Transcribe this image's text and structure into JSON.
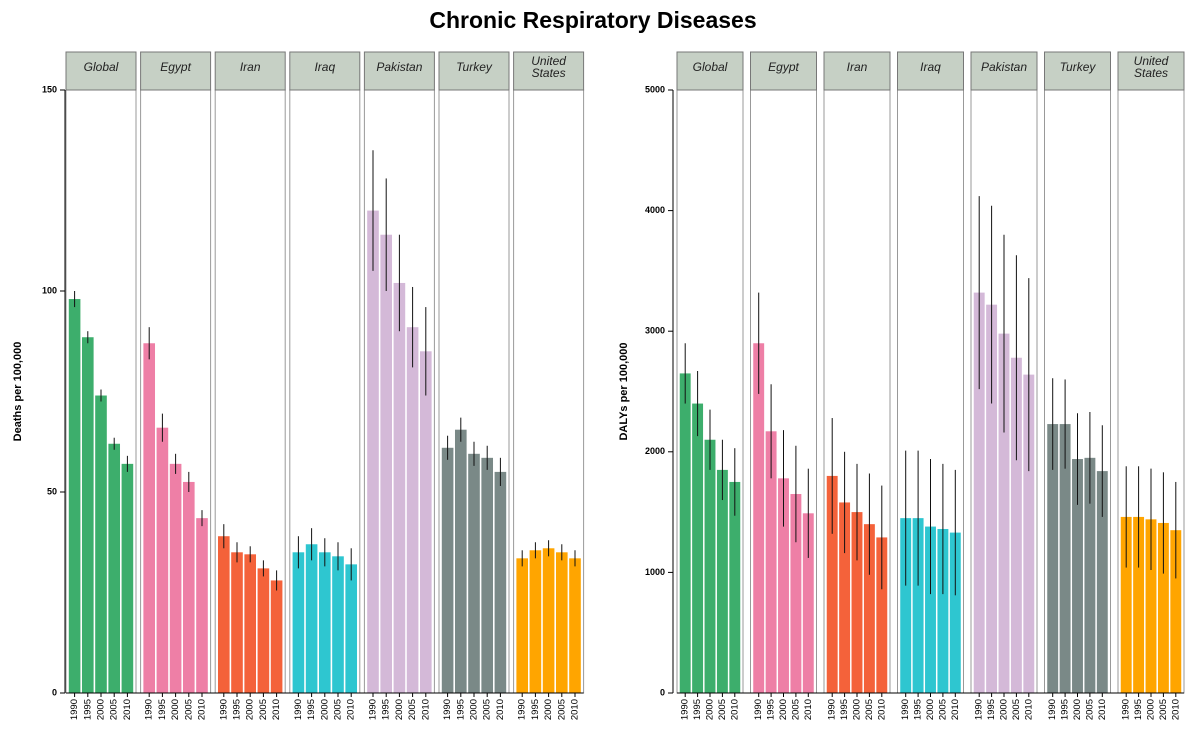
{
  "title": "Chronic Respiratory Diseases",
  "chart_data": [
    {
      "type": "bar",
      "ylabel": "Deaths per 100,000",
      "ylim": [
        0,
        150
      ],
      "yticks": [
        0,
        50,
        100,
        150
      ],
      "categories": [
        "1990",
        "1995",
        "2000",
        "2005",
        "2010"
      ],
      "series": [
        {
          "name": "Global",
          "color": "#3dae6c",
          "values": [
            98,
            88.5,
            74,
            62,
            57
          ],
          "errors": [
            2,
            1.5,
            1.5,
            1.5,
            2
          ]
        },
        {
          "name": "Egypt",
          "color": "#ee7fa6",
          "values": [
            87,
            66,
            57,
            52.5,
            43.5
          ],
          "errors": [
            4,
            3.5,
            2.5,
            2.5,
            2
          ]
        },
        {
          "name": "Iran",
          "color": "#f4623a",
          "values": [
            39,
            35,
            34.5,
            31,
            28
          ],
          "errors": [
            3,
            2.5,
            2,
            2,
            2.5
          ]
        },
        {
          "name": "Iraq",
          "color": "#2ec6d0",
          "values": [
            35,
            37,
            35,
            34,
            32
          ],
          "errors": [
            4,
            4,
            3.5,
            3.5,
            4
          ]
        },
        {
          "name": "Pakistan",
          "color": "#d4b9d8",
          "values": [
            120,
            114,
            102,
            91,
            85
          ],
          "errors": [
            15,
            14,
            12,
            10,
            11
          ]
        },
        {
          "name": "Turkey",
          "color": "#7a8987",
          "values": [
            61,
            65.5,
            59.5,
            58.5,
            55
          ],
          "errors": [
            3,
            3,
            3,
            3,
            3.5
          ]
        },
        {
          "name": "United States",
          "color": "#ffa500",
          "values": [
            33.5,
            35.5,
            36,
            35,
            33.5
          ],
          "errors": [
            2,
            2,
            2,
            2,
            2
          ]
        }
      ]
    },
    {
      "type": "bar",
      "ylabel": "DALYs per 100,000",
      "ylim": [
        0,
        5000
      ],
      "yticks": [
        0,
        1000,
        2000,
        3000,
        4000,
        5000
      ],
      "categories": [
        "1990",
        "1995",
        "2000",
        "2005",
        "2010"
      ],
      "series": [
        {
          "name": "Global",
          "color": "#3dae6c",
          "values": [
            2650,
            2400,
            2100,
            1850,
            1750
          ],
          "errors": [
            250,
            270,
            250,
            250,
            280
          ]
        },
        {
          "name": "Egypt",
          "color": "#ee7fa6",
          "values": [
            2900,
            2170,
            1780,
            1650,
            1490
          ],
          "errors": [
            420,
            390,
            400,
            400,
            370
          ]
        },
        {
          "name": "Iran",
          "color": "#f4623a",
          "values": [
            1800,
            1580,
            1500,
            1400,
            1290
          ],
          "errors": [
            480,
            420,
            400,
            420,
            430
          ]
        },
        {
          "name": "Iraq",
          "color": "#2ec6d0",
          "values": [
            1450,
            1450,
            1380,
            1360,
            1330
          ],
          "errors": [
            560,
            560,
            560,
            540,
            520
          ]
        },
        {
          "name": "Pakistan",
          "color": "#d4b9d8",
          "values": [
            3320,
            3220,
            2980,
            2780,
            2640
          ],
          "errors": [
            800,
            820,
            820,
            850,
            800
          ]
        },
        {
          "name": "Turkey",
          "color": "#7a8987",
          "values": [
            2230,
            2230,
            1940,
            1950,
            1840
          ],
          "errors": [
            380,
            370,
            380,
            380,
            380
          ]
        },
        {
          "name": "United States",
          "color": "#ffa500",
          "values": [
            1460,
            1460,
            1440,
            1410,
            1350
          ],
          "errors": [
            420,
            420,
            420,
            420,
            400
          ]
        }
      ]
    }
  ]
}
